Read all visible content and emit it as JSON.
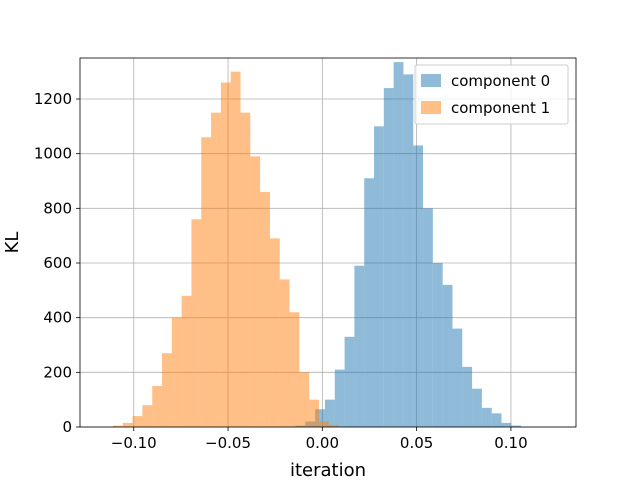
{
  "chart_data": {
    "type": "bar",
    "title": "",
    "xlabel": "iteration",
    "ylabel": "KL",
    "xlim": [
      -0.1285,
      0.1345
    ],
    "ylim": [
      0,
      1350
    ],
    "xticks": [
      -0.1,
      -0.05,
      0.0,
      0.05,
      0.1
    ],
    "xtick_labels": [
      "−0.10",
      "−0.05",
      "0.00",
      "0.05",
      "0.10"
    ],
    "yticks": [
      0,
      200,
      400,
      600,
      800,
      1000,
      1200
    ],
    "ytick_labels": [
      "0",
      "200",
      "400",
      "600",
      "800",
      "1000",
      "1200"
    ],
    "grid": true,
    "legend_position": "top-right",
    "series": [
      {
        "name": "component 0",
        "color": "#1f77b4",
        "opacity": 0.5,
        "bin_start": -0.0142,
        "bin_width": 0.0052,
        "counts": [
          5,
          20,
          65,
          100,
          210,
          330,
          590,
          910,
          1100,
          1240,
          1335,
          1290,
          1030,
          800,
          600,
          520,
          360,
          220,
          140,
          70,
          50,
          15,
          5
        ]
      },
      {
        "name": "component 1",
        "color": "#ff7f0e",
        "opacity": 0.5,
        "bin_start": -0.111,
        "bin_width": 0.0052,
        "counts": [
          5,
          15,
          40,
          80,
          150,
          270,
          400,
          480,
          760,
          1060,
          1150,
          1260,
          1300,
          1150,
          990,
          860,
          690,
          540,
          420,
          200,
          100,
          20,
          8
        ]
      }
    ]
  }
}
